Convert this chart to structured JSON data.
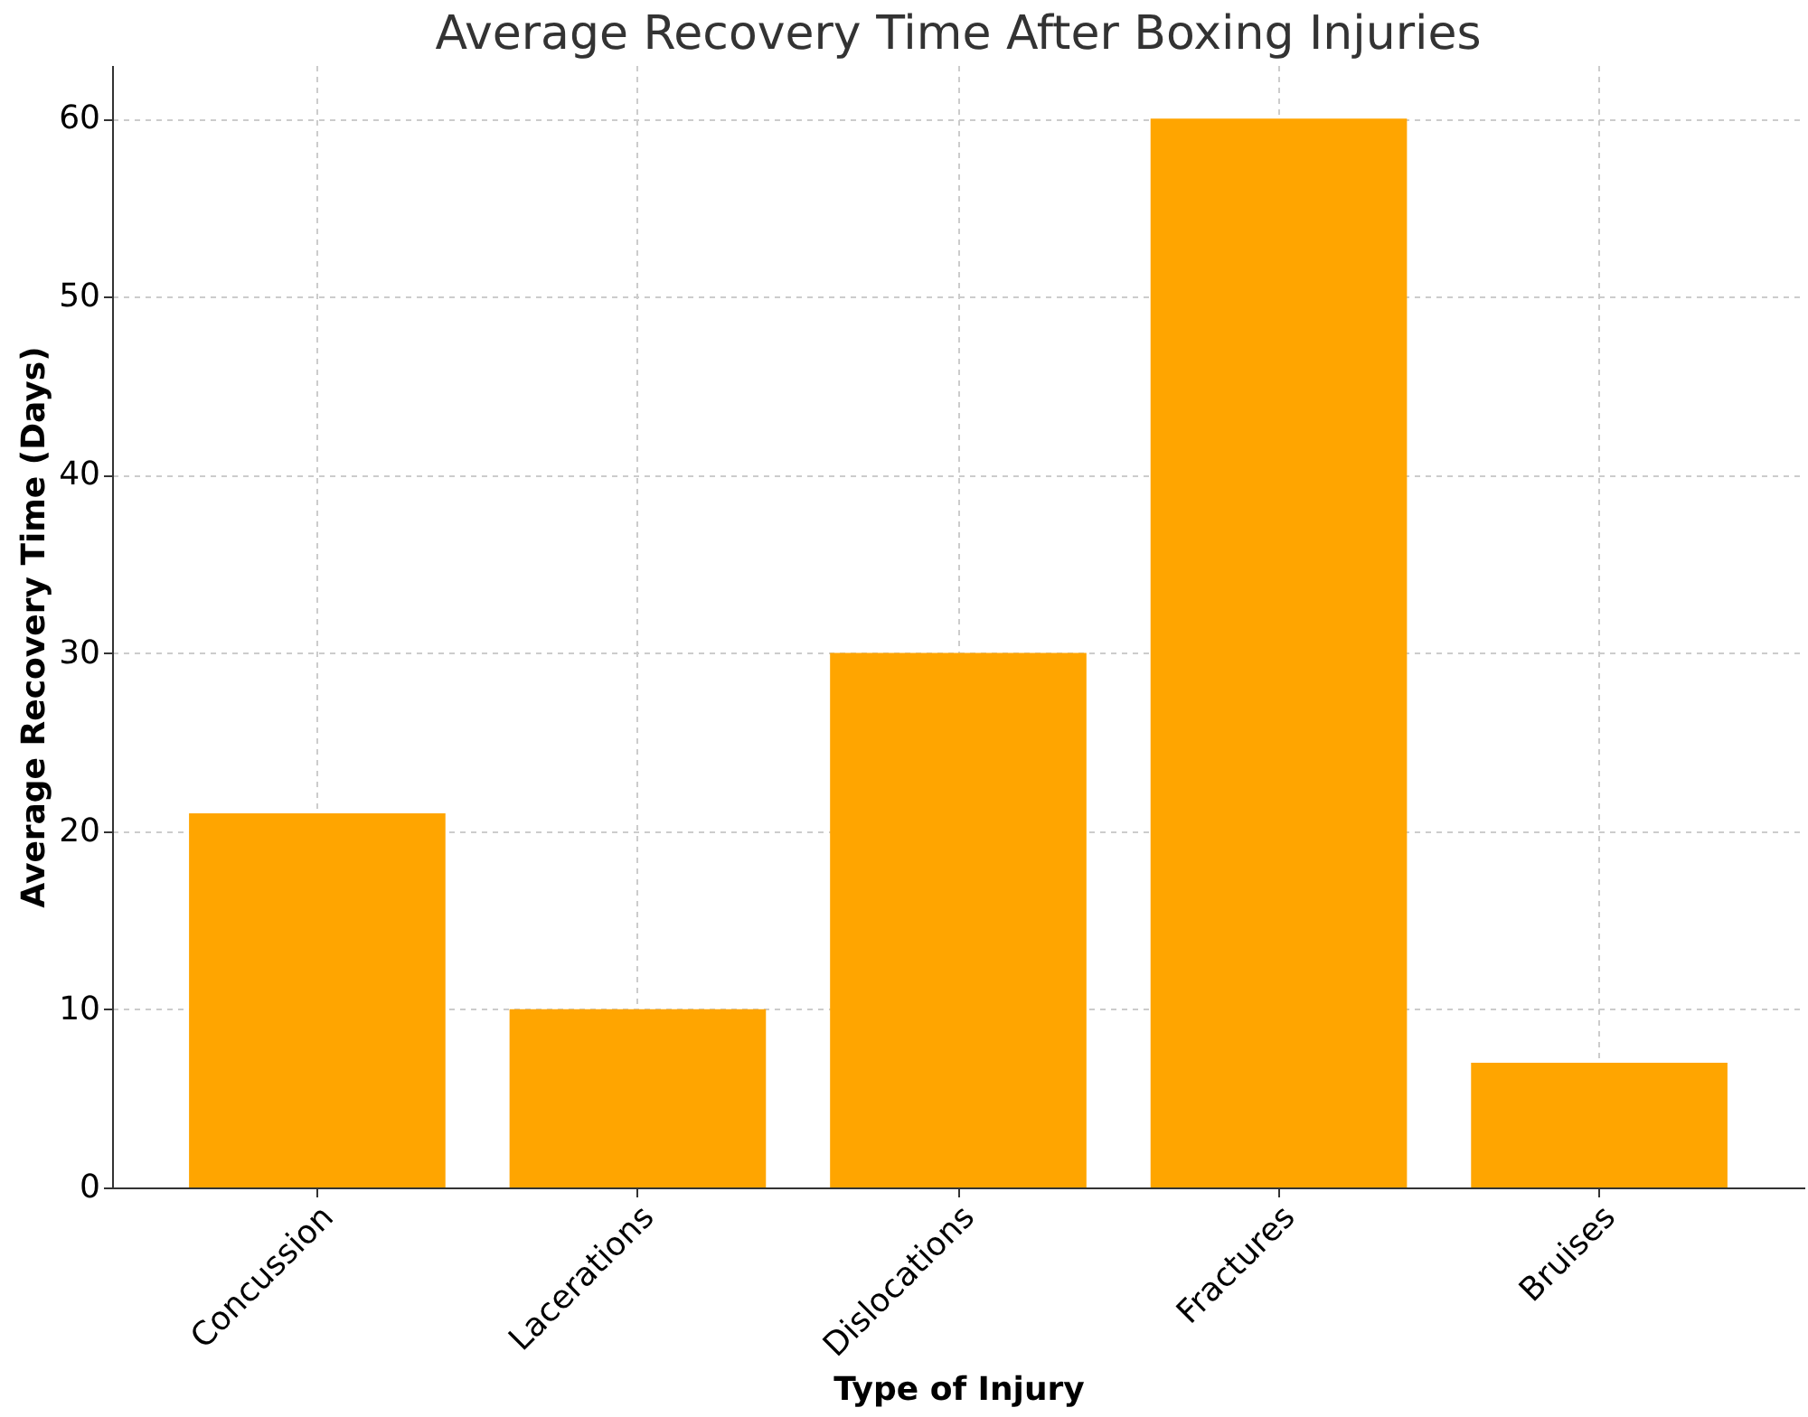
{
  "chart_data": {
    "type": "bar",
    "title": "Average Recovery Time After Boxing Injuries",
    "xlabel": "Type of Injury",
    "ylabel": "Average Recovery Time (Days)",
    "categories": [
      "Concussion",
      "Lacerations",
      "Dislocations",
      "Fractures",
      "Bruises"
    ],
    "values": [
      21,
      10,
      30,
      60,
      7
    ],
    "color": "#ffa500",
    "ylim": [
      0,
      63
    ],
    "yticks": [
      0,
      10,
      20,
      30,
      40,
      50,
      60
    ],
    "grid": true
  }
}
